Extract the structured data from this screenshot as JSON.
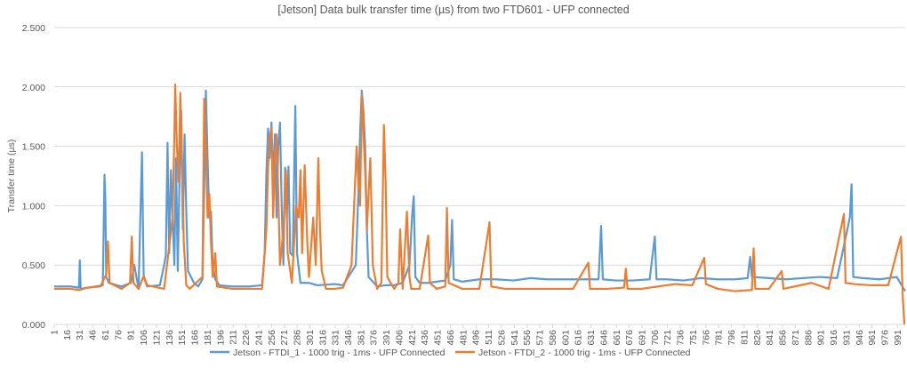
{
  "chart_data": {
    "type": "line",
    "title": "[Jetson] Data bulk transfer time (µs) from two FTD601 - UFP connected",
    "xlabel": "",
    "ylabel": "Transfer time (µs)",
    "xlim": [
      1,
      1000
    ],
    "ylim": [
      0,
      2.5
    ],
    "y_ticks": [
      0,
      0.5,
      1,
      1.5,
      2,
      2.5
    ],
    "y_tick_labels": [
      "0.000",
      "0.500",
      "1.000",
      "1.500",
      "2.000",
      "2.500"
    ],
    "x_ticks": [
      1,
      16,
      31,
      46,
      61,
      76,
      91,
      106,
      121,
      136,
      151,
      166,
      181,
      196,
      211,
      226,
      241,
      256,
      271,
      286,
      301,
      316,
      331,
      346,
      361,
      376,
      391,
      406,
      421,
      436,
      451,
      466,
      481,
      496,
      511,
      526,
      541,
      556,
      571,
      586,
      601,
      616,
      631,
      646,
      661,
      676,
      691,
      706,
      721,
      736,
      751,
      766,
      781,
      796,
      811,
      826,
      841,
      856,
      871,
      886,
      901,
      916,
      931,
      946,
      961,
      976,
      991
    ],
    "grid": "horizontal",
    "legend_position": "bottom",
    "series": [
      {
        "name": "Jetson - FTDI_1 - 1000 trig - 1ms - UFP Connected",
        "color": "#5b9bd5",
        "points": [
          [
            1,
            0.32
          ],
          [
            20,
            0.32
          ],
          [
            30,
            0.31
          ],
          [
            31,
            0.54
          ],
          [
            32,
            0.3
          ],
          [
            50,
            0.32
          ],
          [
            58,
            0.33
          ],
          [
            60,
            1.26
          ],
          [
            61,
            1.05
          ],
          [
            62,
            0.4
          ],
          [
            65,
            0.35
          ],
          [
            80,
            0.32
          ],
          [
            91,
            0.35
          ],
          [
            95,
            0.5
          ],
          [
            100,
            0.3
          ],
          [
            104,
            1.45
          ],
          [
            106,
            0.4
          ],
          [
            110,
            0.32
          ],
          [
            125,
            0.33
          ],
          [
            130,
            0.5
          ],
          [
            132,
            0.58
          ],
          [
            134,
            1.53
          ],
          [
            136,
            0.6
          ],
          [
            138,
            1.3
          ],
          [
            140,
            0.9
          ],
          [
            142,
            0.5
          ],
          [
            144,
            1.4
          ],
          [
            146,
            0.45
          ],
          [
            148,
            1.2
          ],
          [
            150,
            1.8
          ],
          [
            152,
            0.8
          ],
          [
            154,
            1.6
          ],
          [
            156,
            0.95
          ],
          [
            158,
            0.45
          ],
          [
            165,
            0.35
          ],
          [
            170,
            0.32
          ],
          [
            175,
            0.38
          ],
          [
            178,
            1.5
          ],
          [
            179,
            1.97
          ],
          [
            181,
            1.4
          ],
          [
            183,
            0.9
          ],
          [
            185,
            0.95
          ],
          [
            187,
            0.5
          ],
          [
            190,
            0.38
          ],
          [
            195,
            0.33
          ],
          [
            210,
            0.32
          ],
          [
            230,
            0.32
          ],
          [
            245,
            0.33
          ],
          [
            248,
            0.6
          ],
          [
            250,
            1.26
          ],
          [
            252,
            1.65
          ],
          [
            254,
            1.4
          ],
          [
            256,
            1.7
          ],
          [
            258,
            1.2
          ],
          [
            260,
            1.6
          ],
          [
            262,
            0.9
          ],
          [
            264,
            1.5
          ],
          [
            266,
            1.7
          ],
          [
            268,
            1.0
          ],
          [
            270,
            0.5
          ],
          [
            272,
            1.32
          ],
          [
            274,
            0.9
          ],
          [
            276,
            1.33
          ],
          [
            278,
            0.6
          ],
          [
            281,
            0.58
          ],
          [
            284,
            1.84
          ],
          [
            286,
            0.6
          ],
          [
            290,
            0.35
          ],
          [
            300,
            0.35
          ],
          [
            310,
            0.33
          ],
          [
            330,
            0.34
          ],
          [
            340,
            0.33
          ],
          [
            355,
            0.5
          ],
          [
            358,
            1.1
          ],
          [
            360,
            1.6
          ],
          [
            362,
            1.97
          ],
          [
            364,
            1.8
          ],
          [
            366,
            1.5
          ],
          [
            368,
            0.8
          ],
          [
            370,
            0.4
          ],
          [
            380,
            0.32
          ],
          [
            390,
            0.33
          ],
          [
            400,
            0.33
          ],
          [
            410,
            0.35
          ],
          [
            418,
            0.5
          ],
          [
            421,
            0.9
          ],
          [
            423,
            1.08
          ],
          [
            425,
            0.4
          ],
          [
            430,
            0.35
          ],
          [
            440,
            0.35
          ],
          [
            450,
            0.36
          ],
          [
            460,
            0.37
          ],
          [
            466,
            0.5
          ],
          [
            468,
            0.88
          ],
          [
            470,
            0.38
          ],
          [
            480,
            0.36
          ],
          [
            500,
            0.38
          ],
          [
            520,
            0.38
          ],
          [
            540,
            0.37
          ],
          [
            560,
            0.39
          ],
          [
            580,
            0.38
          ],
          [
            600,
            0.38
          ],
          [
            620,
            0.38
          ],
          [
            640,
            0.38
          ],
          [
            643,
            0.83
          ],
          [
            645,
            0.38
          ],
          [
            660,
            0.37
          ],
          [
            680,
            0.37
          ],
          [
            700,
            0.38
          ],
          [
            706,
            0.74
          ],
          [
            708,
            0.38
          ],
          [
            720,
            0.38
          ],
          [
            740,
            0.37
          ],
          [
            760,
            0.39
          ],
          [
            780,
            0.38
          ],
          [
            800,
            0.38
          ],
          [
            815,
            0.39
          ],
          [
            818,
            0.57
          ],
          [
            820,
            0.4
          ],
          [
            840,
            0.39
          ],
          [
            860,
            0.38
          ],
          [
            880,
            0.39
          ],
          [
            900,
            0.4
          ],
          [
            920,
            0.39
          ],
          [
            935,
            0.9
          ],
          [
            937,
            1.18
          ],
          [
            939,
            0.4
          ],
          [
            950,
            0.39
          ],
          [
            970,
            0.38
          ],
          [
            990,
            0.4
          ],
          [
            1000,
            0.28
          ]
        ]
      },
      {
        "name": "Jetson - FTDI_2 - 1000 trig - 1ms - UFP Connected",
        "color": "#ed7d31",
        "points": [
          [
            1,
            0.3
          ],
          [
            20,
            0.3
          ],
          [
            30,
            0.29
          ],
          [
            40,
            0.31
          ],
          [
            55,
            0.32
          ],
          [
            62,
            0.42
          ],
          [
            64,
            0.7
          ],
          [
            66,
            0.35
          ],
          [
            80,
            0.3
          ],
          [
            90,
            0.35
          ],
          [
            92,
            0.74
          ],
          [
            94,
            0.35
          ],
          [
            100,
            0.3
          ],
          [
            106,
            0.41
          ],
          [
            110,
            0.33
          ],
          [
            130,
            0.3
          ],
          [
            140,
            0.9
          ],
          [
            142,
            1.6
          ],
          [
            143,
            2.02
          ],
          [
            145,
            1.5
          ],
          [
            147,
            1.2
          ],
          [
            149,
            1.95
          ],
          [
            151,
            1.4
          ],
          [
            153,
            0.7
          ],
          [
            156,
            0.33
          ],
          [
            160,
            0.3
          ],
          [
            175,
            0.4
          ],
          [
            177,
            1.9
          ],
          [
            179,
            1.5
          ],
          [
            181,
            0.9
          ],
          [
            183,
            1.1
          ],
          [
            185,
            0.7
          ],
          [
            187,
            0.4
          ],
          [
            190,
            0.6
          ],
          [
            192,
            0.32
          ],
          [
            210,
            0.3
          ],
          [
            230,
            0.3
          ],
          [
            245,
            0.3
          ],
          [
            250,
            0.8
          ],
          [
            253,
            1.55
          ],
          [
            256,
            1.65
          ],
          [
            258,
            0.9
          ],
          [
            260,
            1.4
          ],
          [
            262,
            1.6
          ],
          [
            264,
            1.1
          ],
          [
            266,
            0.5
          ],
          [
            270,
            0.8
          ],
          [
            273,
            1.3
          ],
          [
            275,
            0.6
          ],
          [
            280,
            0.35
          ],
          [
            285,
            1.0
          ],
          [
            288,
            0.9
          ],
          [
            290,
            1.3
          ],
          [
            292,
            0.6
          ],
          [
            295,
            1.34
          ],
          [
            298,
            0.7
          ],
          [
            300,
            0.4
          ],
          [
            305,
            0.9
          ],
          [
            308,
            0.5
          ],
          [
            311,
            1.4
          ],
          [
            313,
            0.8
          ],
          [
            315,
            0.45
          ],
          [
            320,
            0.3
          ],
          [
            330,
            0.3
          ],
          [
            340,
            0.31
          ],
          [
            350,
            0.5
          ],
          [
            356,
            1.5
          ],
          [
            358,
            1.2
          ],
          [
            360,
            1.0
          ],
          [
            362,
            1.94
          ],
          [
            364,
            1.6
          ],
          [
            366,
            1.3
          ],
          [
            368,
            0.8
          ],
          [
            372,
            1.4
          ],
          [
            375,
            0.5
          ],
          [
            380,
            0.3
          ],
          [
            385,
            0.35
          ],
          [
            388,
            1.68
          ],
          [
            390,
            1.2
          ],
          [
            392,
            0.4
          ],
          [
            400,
            0.3
          ],
          [
            405,
            0.35
          ],
          [
            407,
            0.8
          ],
          [
            410,
            0.3
          ],
          [
            415,
            0.95
          ],
          [
            418,
            0.4
          ],
          [
            420,
            0.3
          ],
          [
            430,
            0.3
          ],
          [
            440,
            0.75
          ],
          [
            442,
            0.35
          ],
          [
            450,
            0.3
          ],
          [
            460,
            0.32
          ],
          [
            462,
            0.98
          ],
          [
            464,
            0.35
          ],
          [
            480,
            0.3
          ],
          [
            500,
            0.3
          ],
          [
            512,
            0.86
          ],
          [
            514,
            0.32
          ],
          [
            530,
            0.3
          ],
          [
            550,
            0.3
          ],
          [
            570,
            0.3
          ],
          [
            590,
            0.3
          ],
          [
            610,
            0.3
          ],
          [
            628,
            0.52
          ],
          [
            630,
            0.3
          ],
          [
            650,
            0.3
          ],
          [
            670,
            0.31
          ],
          [
            672,
            0.47
          ],
          [
            674,
            0.3
          ],
          [
            690,
            0.3
          ],
          [
            710,
            0.32
          ],
          [
            730,
            0.34
          ],
          [
            750,
            0.33
          ],
          [
            764,
            0.56
          ],
          [
            766,
            0.34
          ],
          [
            780,
            0.3
          ],
          [
            800,
            0.28
          ],
          [
            820,
            0.29
          ],
          [
            822,
            0.64
          ],
          [
            824,
            0.3
          ],
          [
            840,
            0.3
          ],
          [
            855,
            0.45
          ],
          [
            857,
            0.3
          ],
          [
            870,
            0.32
          ],
          [
            890,
            0.35
          ],
          [
            910,
            0.3
          ],
          [
            928,
            0.93
          ],
          [
            930,
            0.35
          ],
          [
            940,
            0.34
          ],
          [
            960,
            0.33
          ],
          [
            980,
            0.33
          ],
          [
            995,
            0.74
          ],
          [
            997,
            0.25
          ],
          [
            999,
            0.0
          ]
        ]
      }
    ]
  }
}
